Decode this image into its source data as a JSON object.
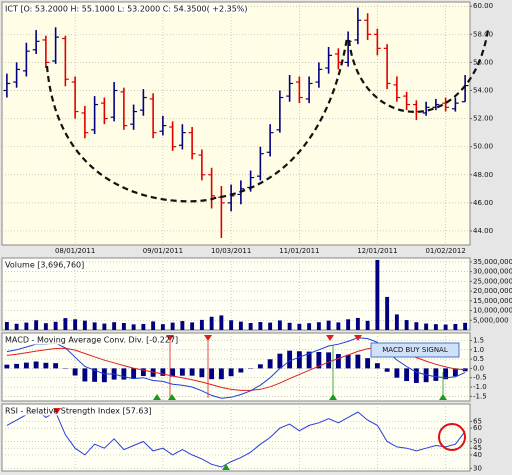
{
  "chart_data": [
    {
      "type": "ohlc",
      "title": "ICT [O: 53.2000  H: 55.1000  L: 53.2000  C: 54.3500( +2.35%)",
      "categories": [
        null,
        null,
        null,
        null,
        null,
        null,
        null,
        "08/01/2011",
        null,
        null,
        null,
        null,
        null,
        null,
        null,
        null,
        "09/01/2011",
        null,
        null,
        null,
        null,
        null,
        null,
        "10/03/2011",
        null,
        null,
        null,
        null,
        null,
        null,
        "11/01/2011",
        null,
        null,
        null,
        null,
        null,
        null,
        null,
        "12/01/2011",
        null,
        null,
        null,
        null,
        null,
        null,
        "01/02/2012",
        null,
        null
      ],
      "open": [
        54.0,
        54.6,
        55.4,
        56.9,
        57.6,
        56.1,
        57.7,
        54.6,
        52.4,
        51.2,
        53.1,
        52.1,
        53.9,
        51.6,
        52.6,
        53.4,
        51.1,
        51.4,
        50.1,
        51.0,
        49.4,
        48.0,
        46.4,
        46.0,
        46.6,
        47.1,
        47.9,
        49.6,
        51.2,
        53.6,
        54.6,
        53.4,
        54.6,
        55.6,
        56.6,
        56.0,
        57.6,
        59.0,
        58.0,
        57.0,
        54.4,
        53.6,
        53.0,
        52.4,
        52.8,
        53.1,
        52.7,
        53.2
      ],
      "high": [
        55.2,
        56.0,
        57.4,
        58.3,
        57.9,
        58.5,
        57.9,
        55.0,
        52.9,
        53.6,
        53.5,
        54.6,
        54.2,
        53.0,
        54.1,
        53.8,
        52.2,
        51.8,
        51.6,
        51.4,
        49.8,
        48.5,
        47.2,
        47.3,
        47.6,
        48.3,
        50.0,
        51.6,
        54.0,
        55.1,
        55.0,
        55.0,
        56.0,
        57.1,
        57.0,
        58.2,
        59.9,
        59.5,
        58.4,
        57.3,
        55.0,
        53.9,
        53.3,
        53.2,
        53.4,
        53.5,
        53.5,
        55.1
      ],
      "low": [
        53.5,
        54.2,
        55.0,
        56.6,
        55.6,
        55.9,
        54.3,
        52.0,
        50.6,
        50.9,
        51.6,
        51.8,
        51.2,
        51.2,
        52.2,
        50.6,
        50.8,
        49.7,
        49.8,
        49.1,
        47.6,
        45.6,
        43.5,
        45.4,
        45.9,
        46.8,
        47.6,
        49.3,
        51.0,
        53.2,
        53.1,
        53.1,
        54.2,
        55.2,
        55.5,
        55.7,
        57.3,
        57.6,
        56.5,
        54.1,
        53.2,
        52.6,
        51.9,
        52.2,
        52.6,
        52.5,
        52.5,
        53.2
      ],
      "close": [
        54.5,
        55.5,
        56.8,
        57.5,
        56.0,
        57.8,
        54.8,
        52.5,
        51.0,
        53.0,
        52.0,
        54.0,
        51.5,
        52.5,
        53.5,
        51.0,
        51.5,
        50.0,
        51.0,
        49.5,
        48.0,
        46.5,
        46.0,
        46.5,
        47.0,
        47.8,
        49.5,
        51.0,
        53.5,
        54.5,
        53.5,
        54.5,
        55.5,
        56.5,
        56.0,
        57.5,
        59.0,
        58.0,
        57.0,
        54.5,
        53.5,
        53.0,
        52.5,
        52.8,
        53.0,
        52.8,
        53.1,
        54.35
      ],
      "up_color": "#000080",
      "down_color": "#e00000",
      "ylim": [
        43,
        60.3
      ],
      "yticks": [
        {
          "value": 44,
          "label": "44.00"
        },
        {
          "value": 46,
          "label": "46.00"
        },
        {
          "value": 48,
          "label": "48.00"
        },
        {
          "value": 50,
          "label": "50.00"
        },
        {
          "value": 52,
          "label": "52.00"
        },
        {
          "value": 54,
          "label": "54.00"
        },
        {
          "value": 56,
          "label": "56.00"
        },
        {
          "value": 58,
          "label": "58.00"
        },
        {
          "value": 60,
          "label": "60.00"
        }
      ],
      "grid": true
    },
    {
      "type": "bar",
      "title": "Volume [3,696,760]",
      "values": [
        4100000,
        3200000,
        3800000,
        5000000,
        3500000,
        4200000,
        6100000,
        5500000,
        4800000,
        3900000,
        3300000,
        4000000,
        3600000,
        2900000,
        3100000,
        4400000,
        3000000,
        3800000,
        4600000,
        3900000,
        5200000,
        6800000,
        7500000,
        5000000,
        4300000,
        3600000,
        4100000,
        3800000,
        4900000,
        3700000,
        3200000,
        3500000,
        4000000,
        4800000,
        3900000,
        5500000,
        6200000,
        4700000,
        36000000,
        17000000,
        8000000,
        5100000,
        4000000,
        3300000,
        3000000,
        2800000,
        3100000,
        3696760
      ],
      "color": "#000080",
      "ylim": [
        0,
        37000000
      ],
      "yticks": [
        {
          "value": 5000000,
          "label": "5,000,000"
        },
        {
          "value": 10000000,
          "label": "10,000,000"
        },
        {
          "value": 15000000,
          "label": "15,000,000"
        },
        {
          "value": 20000000,
          "label": "20,000,000"
        },
        {
          "value": 25000000,
          "label": "25,000,000"
        },
        {
          "value": 30000000,
          "label": "30,000,000"
        },
        {
          "value": 35000000,
          "label": "35,000,000"
        }
      ],
      "grid": true
    },
    {
      "type": "macd",
      "title": "MACD - Moving Average Conv. Div. [-0.227]",
      "macd": [
        0.9,
        1.0,
        1.15,
        1.3,
        1.3,
        1.35,
        1.1,
        0.6,
        0.1,
        -0.1,
        -0.3,
        -0.3,
        -0.45,
        -0.55,
        -0.5,
        -0.65,
        -0.7,
        -0.85,
        -0.9,
        -1.0,
        -1.2,
        -1.45,
        -1.6,
        -1.55,
        -1.4,
        -1.2,
        -0.9,
        -0.5,
        0.0,
        0.4,
        0.6,
        0.8,
        1.0,
        1.2,
        1.3,
        1.45,
        1.65,
        1.6,
        1.4,
        0.9,
        0.45,
        0.1,
        -0.2,
        -0.35,
        -0.45,
        -0.5,
        -0.45,
        -0.227
      ],
      "signal": [
        0.7,
        0.76,
        0.84,
        0.93,
        1.0,
        1.07,
        1.08,
        0.98,
        0.8,
        0.62,
        0.44,
        0.3,
        0.15,
        0.01,
        -0.09,
        -0.2,
        -0.3,
        -0.41,
        -0.51,
        -0.61,
        -0.73,
        -0.87,
        -1.02,
        -1.13,
        -1.18,
        -1.18,
        -1.12,
        -0.99,
        -0.79,
        -0.55,
        -0.32,
        -0.1,
        0.12,
        0.34,
        0.53,
        0.72,
        0.91,
        1.05,
        1.12,
        1.08,
        0.95,
        0.78,
        0.58,
        0.39,
        0.22,
        0.08,
        -0.03,
        -0.07
      ],
      "histogram": [
        0.2,
        0.24,
        0.31,
        0.37,
        0.3,
        0.28,
        0.02,
        -0.38,
        -0.7,
        -0.72,
        -0.74,
        -0.6,
        -0.6,
        -0.56,
        -0.41,
        -0.45,
        -0.4,
        -0.44,
        -0.39,
        -0.39,
        -0.47,
        -0.58,
        -0.58,
        -0.42,
        -0.22,
        -0.02,
        0.22,
        0.49,
        0.79,
        0.95,
        0.92,
        0.9,
        0.88,
        0.86,
        0.77,
        0.73,
        0.74,
        0.55,
        0.28,
        -0.18,
        -0.5,
        -0.68,
        -0.78,
        -0.74,
        -0.67,
        -0.58,
        -0.42,
        -0.157
      ],
      "macd_color": "#1c3fd6",
      "signal_color": "#e02020",
      "histogram_color": "#000080",
      "annotation": "MACD BUY SIGNAL",
      "ylim": [
        -1.75,
        1.9
      ],
      "yticks": [
        -1.5,
        {
          "value": -1,
          "label": "-1.0"
        },
        -0.5,
        {
          "value": 0,
          "label": "0.0"
        },
        0.5,
        {
          "value": 1,
          "label": "1.0"
        },
        1.5
      ],
      "grid": true
    },
    {
      "type": "line",
      "title": "RSI - Relative Strength Index [57.63]",
      "values": [
        62,
        66,
        70,
        74,
        68,
        72,
        55,
        45,
        40,
        48,
        45,
        52,
        44,
        47,
        50,
        43,
        45,
        40,
        44,
        40,
        37,
        33,
        31,
        35,
        38,
        42,
        48,
        53,
        60,
        63,
        58,
        62,
        64,
        67,
        64,
        68,
        72,
        66,
        62,
        50,
        46,
        45,
        43,
        45,
        47,
        46,
        48,
        57.63
      ],
      "color": "#2a3ed8",
      "ylim": [
        28,
        78
      ],
      "yticks": [
        30,
        40,
        45,
        50,
        60,
        65
      ],
      "grid": true
    }
  ]
}
